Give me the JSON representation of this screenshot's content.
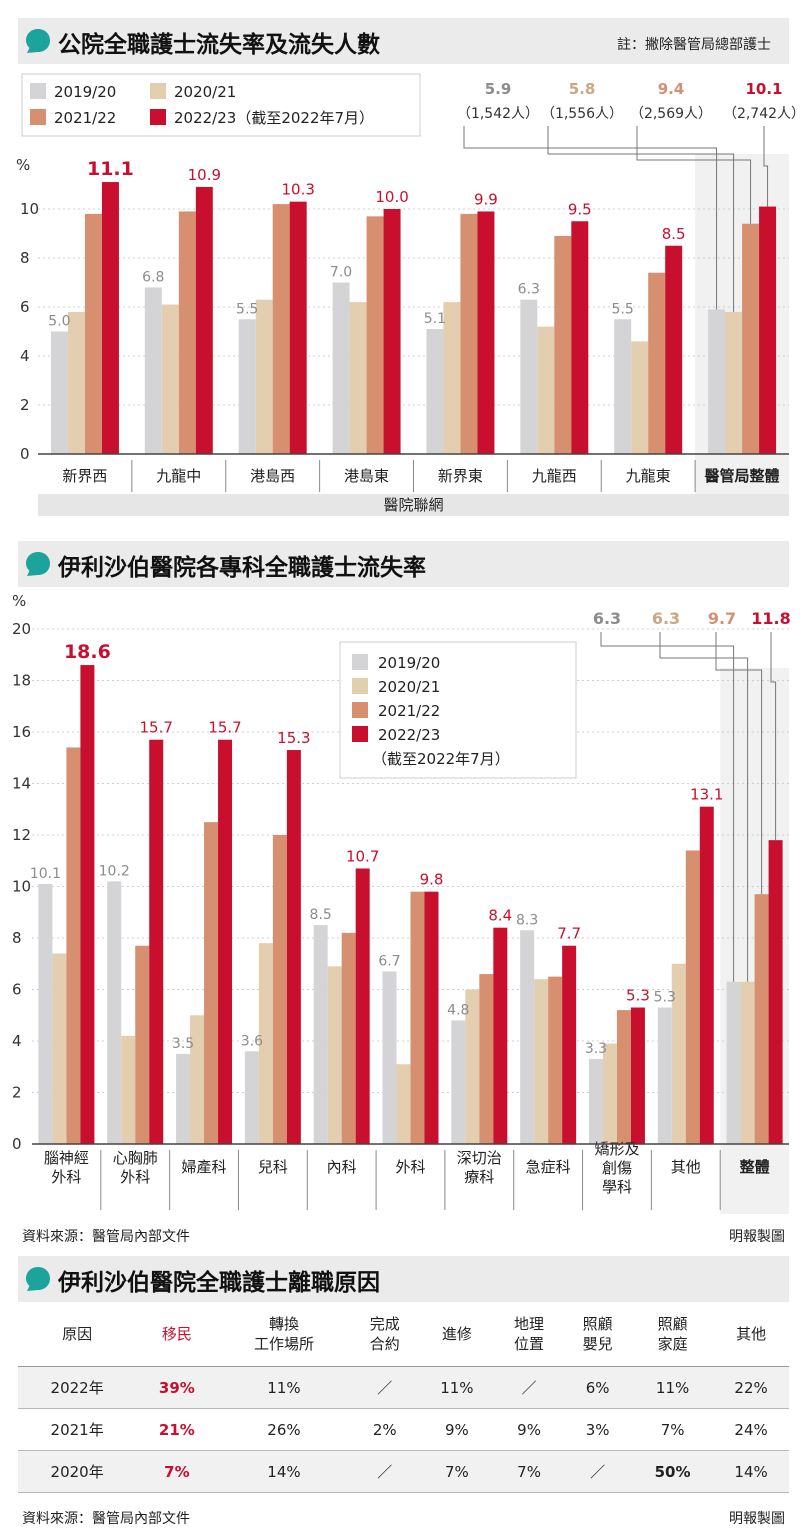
{
  "chart1": {
    "title": "公院全職護士流失率及流失人數",
    "note": "註：撇除醫管局總部護士",
    "unit": "%",
    "group_label": "醫院聯網",
    "legend": [
      "2019/20",
      "2020/21",
      "2021/22",
      "2022/23（截至2022年7月）"
    ]
  },
  "chart2": {
    "title": "伊利沙伯醫院各專科全職護士流失率",
    "unit": "%",
    "legend": [
      "2019/20",
      "2020/21",
      "2021/22",
      "2022/23",
      "（截至2022年7月）"
    ]
  },
  "chart3": {
    "title": "伊利沙伯醫院全職護士離職原因"
  },
  "source1": "資料來源：醫管局內部文件",
  "credit1": "明報製圖",
  "source2": "資料來源：醫管局內部文件",
  "credit2": "明報製圖",
  "colors": {
    "c1": "#d4d4d6",
    "c2": "#e3cfb0",
    "c3": "#d6906f",
    "c4": "#c8102e",
    "grey_text": "#8c8c8c",
    "tan_text": "#c9a882",
    "salmon_text": "#d6906f"
  },
  "chart_data": [
    {
      "type": "bar",
      "title": "公院全職護士流失率及流失人數",
      "ylabel": "%",
      "xlabel": "醫院聯網",
      "ylim": [
        0,
        11.5
      ],
      "yticks": [
        0,
        2,
        4,
        6,
        8,
        10
      ],
      "grid": true,
      "legend_position": "top-left",
      "categories": [
        "新界西",
        "九龍中",
        "港島西",
        "港島東",
        "新界東",
        "九龍西",
        "九龍東",
        "醫管局整體"
      ],
      "series": [
        {
          "name": "2019/20",
          "values": [
            5.0,
            6.8,
            5.5,
            7.0,
            5.1,
            6.3,
            5.5,
            5.9
          ]
        },
        {
          "name": "2020/21",
          "values": [
            5.8,
            6.1,
            6.3,
            6.2,
            6.2,
            5.2,
            4.6,
            5.8
          ]
        },
        {
          "name": "2021/22",
          "values": [
            9.8,
            9.9,
            10.2,
            9.7,
            9.8,
            8.9,
            7.4,
            9.4
          ]
        },
        {
          "name": "2022/23（截至2022年7月）",
          "values": [
            11.1,
            10.9,
            10.3,
            10.0,
            9.9,
            9.5,
            8.5,
            10.1
          ]
        }
      ],
      "data_labels": [
        [
          "5.0",
          "",
          "",
          "11.1"
        ],
        [
          "6.8",
          "",
          "",
          "10.9"
        ],
        [
          "5.5",
          "",
          "",
          "10.3"
        ],
        [
          "7.0",
          "",
          "",
          "10.0"
        ],
        [
          "5.1",
          "",
          "",
          "9.9"
        ],
        [
          "6.3",
          "",
          "",
          "9.5"
        ],
        [
          "5.5",
          "",
          "",
          "8.5"
        ]
      ],
      "overall_callouts": [
        {
          "value": "5.9",
          "count": "（1,542人）"
        },
        {
          "value": "5.8",
          "count": "（1,556人）"
        },
        {
          "value": "9.4",
          "count": "（2,569人）"
        },
        {
          "value": "10.1",
          "count": "（2,742人）"
        }
      ]
    },
    {
      "type": "bar",
      "title": "伊利沙伯醫院各專科全職護士流失率",
      "ylabel": "%",
      "ylim": [
        0,
        20
      ],
      "yticks": [
        0,
        2,
        4,
        6,
        8,
        10,
        12,
        14,
        16,
        18,
        20
      ],
      "grid": true,
      "legend_position": "top-right",
      "categories": [
        "腦神經\n外科",
        "心胸肺\n外科",
        "婦產科",
        "兒科",
        "內科",
        "外科",
        "深切治\n療科",
        "急症科",
        "矯形及\n創傷\n學科",
        "其他",
        "整體"
      ],
      "series": [
        {
          "name": "2019/20",
          "values": [
            10.1,
            10.2,
            3.5,
            3.6,
            8.5,
            6.7,
            4.8,
            8.3,
            3.3,
            5.3,
            6.3
          ]
        },
        {
          "name": "2020/21",
          "values": [
            7.4,
            4.2,
            5.0,
            7.8,
            6.9,
            3.1,
            6.0,
            6.4,
            3.9,
            7.0,
            6.3
          ]
        },
        {
          "name": "2021/22",
          "values": [
            15.4,
            7.7,
            12.5,
            12.0,
            8.2,
            9.8,
            6.6,
            6.5,
            5.2,
            11.4,
            9.7
          ]
        },
        {
          "name": "2022/23（截至2022年7月）",
          "values": [
            18.6,
            15.7,
            15.7,
            15.3,
            10.7,
            9.8,
            8.4,
            7.7,
            5.3,
            13.1,
            11.8
          ]
        }
      ],
      "data_labels": [
        [
          "10.1",
          "",
          "",
          "18.6"
        ],
        [
          "10.2",
          "",
          "",
          "15.7"
        ],
        [
          "3.5",
          "",
          "",
          "15.7"
        ],
        [
          "3.6",
          "",
          "",
          "15.3"
        ],
        [
          "8.5",
          "",
          "",
          "10.7"
        ],
        [
          "6.7",
          "",
          "",
          "9.8"
        ],
        [
          "4.8",
          "",
          "",
          "8.4"
        ],
        [
          "8.3",
          "",
          "",
          "7.7"
        ],
        [
          "3.3",
          "",
          "",
          "5.3"
        ],
        [
          "5.3",
          "",
          "",
          "13.1"
        ]
      ],
      "overall_callouts": [
        "6.3",
        "6.3",
        "9.7",
        "11.8"
      ]
    },
    {
      "type": "table",
      "title": "伊利沙伯醫院全職護士離職原因",
      "columns": [
        "原因",
        "移民",
        "轉換\n工作場所",
        "完成\n合約",
        "進修",
        "地理\n位置",
        "照顧\n嬰兒",
        "照顧\n家庭",
        "其他"
      ],
      "rows": [
        [
          "2022年",
          "39%",
          "11%",
          "／",
          "11%",
          "／",
          "6%",
          "11%",
          "22%"
        ],
        [
          "2021年",
          "21%",
          "26%",
          "2%",
          "9%",
          "9%",
          "3%",
          "7%",
          "24%"
        ],
        [
          "2020年",
          "7%",
          "14%",
          "／",
          "7%",
          "7%",
          "／",
          "50%",
          "14%"
        ]
      ]
    }
  ]
}
